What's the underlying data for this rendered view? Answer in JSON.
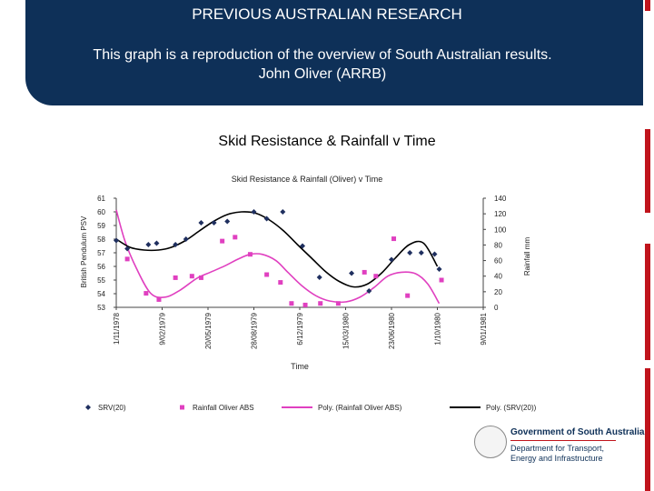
{
  "banner": {
    "title": "PREVIOUS AUSTRALIAN RESEARCH",
    "subtitle_line1": "This graph is a reproduction of the overview of South Australian results.",
    "subtitle_line2": "John Oliver (ARRB)"
  },
  "slide_title": "Skid Resistance & Rainfall v Time",
  "chart_data": {
    "type": "scatter",
    "title": "Skid Resistance & Rainfall (Oliver) v Time",
    "xlabel": "Time",
    "ylabel": "British Pendulum PSV",
    "y2label": "Rainfall mm",
    "x_ticks": [
      "1/11/1978",
      "9/02/1979",
      "20/05/1979",
      "28/08/1979",
      "6/12/1979",
      "15/03/1980",
      "23/06/1980",
      "1/10/1980",
      "9/01/1981"
    ],
    "y_ticks": [
      "61",
      "60",
      "59",
      "58",
      "57",
      "56",
      "55",
      "54",
      "53"
    ],
    "y2_ticks": [
      "140",
      "120",
      "100",
      "80",
      "60",
      "40",
      "20",
      "0"
    ],
    "ylim": [
      53,
      61
    ],
    "y2lim": [
      0,
      140
    ],
    "series": [
      {
        "name": "SRV(20)",
        "axis": "left",
        "marker": "diamond",
        "color": "#1f2f5f",
        "x": [
          "1978-11-01",
          "1978-11-25",
          "1979-01-10",
          "1979-01-28",
          "1979-03-10",
          "1979-04-02",
          "1979-05-05",
          "1979-06-02",
          "1979-07-01",
          "1979-08-28",
          "1979-09-25",
          "1979-10-30",
          "1979-12-12",
          "1980-01-18",
          "1980-03-28",
          "1980-05-05",
          "1980-06-23",
          "1980-08-02",
          "1980-08-27",
          "1980-09-25",
          "1980-10-05"
        ],
        "y": [
          57.9,
          57.3,
          57.6,
          57.7,
          57.6,
          58.0,
          59.2,
          59.2,
          59.3,
          60.0,
          59.5,
          60.0,
          57.5,
          55.2,
          55.5,
          54.2,
          56.5,
          57.0,
          57.0,
          56.9,
          55.8
        ]
      },
      {
        "name": "Rainfall Oliver ABS",
        "axis": "right",
        "marker": "square",
        "color": "#e040c0",
        "x": [
          "1978-11-25",
          "1979-01-05",
          "1979-02-02",
          "1979-03-10",
          "1979-04-15",
          "1979-05-05",
          "1979-06-20",
          "1979-07-18",
          "1979-08-20",
          "1979-09-25",
          "1979-10-25",
          "1979-11-18",
          "1979-12-18",
          "1980-01-20",
          "1980-02-28",
          "1980-04-25",
          "1980-05-20",
          "1980-06-28",
          "1980-07-28",
          "1980-10-10"
        ],
        "y": [
          62,
          18,
          10,
          38,
          40,
          38,
          85,
          90,
          68,
          42,
          32,
          5,
          3,
          5,
          5,
          45,
          40,
          88,
          15,
          35
        ]
      },
      {
        "name": "Poly. (Rainfall Oliver ABS)",
        "axis": "right",
        "type": "line",
        "color": "#e040c0",
        "x": [
          "1978-11-01",
          "1978-11-20",
          "1978-12-15",
          "1979-01-15",
          "1979-02-15",
          "1979-03-20",
          "1979-04-25",
          "1979-05-25",
          "1979-06-25",
          "1979-07-25",
          "1979-08-20",
          "1979-09-15",
          "1979-10-15",
          "1979-11-10",
          "1979-12-10",
          "1980-01-10",
          "1980-02-10",
          "1980-03-15",
          "1980-04-15",
          "1980-05-15",
          "1980-06-15",
          "1980-07-15",
          "1980-08-15",
          "1980-09-10",
          "1980-10-05"
        ],
        "y": [
          125,
          85,
          50,
          18,
          13,
          22,
          37,
          45,
          53,
          62,
          68,
          68,
          60,
          45,
          28,
          15,
          8,
          7,
          13,
          25,
          40,
          45,
          43,
          30,
          5
        ]
      },
      {
        "name": "Poly. (SRV(20))",
        "axis": "left",
        "type": "line",
        "color": "#000000",
        "x": [
          "1978-11-01",
          "1978-12-01",
          "1979-01-01",
          "1979-02-01",
          "1979-03-01",
          "1979-04-01",
          "1979-05-01",
          "1979-06-01",
          "1979-07-01",
          "1979-08-01",
          "1979-09-01",
          "1979-10-01",
          "1979-11-01",
          "1979-12-01",
          "1980-01-01",
          "1980-02-01",
          "1980-03-01",
          "1980-04-01",
          "1980-05-01",
          "1980-06-01",
          "1980-07-01",
          "1980-08-01",
          "1980-09-01",
          "1980-10-01"
        ],
        "y": [
          58.0,
          57.4,
          57.2,
          57.2,
          57.4,
          57.9,
          58.6,
          59.3,
          59.8,
          60.0,
          59.9,
          59.4,
          58.6,
          57.6,
          56.6,
          55.6,
          54.9,
          54.5,
          54.7,
          55.5,
          56.6,
          57.6,
          57.7,
          56.0
        ]
      }
    ],
    "legend": [
      "SRV(20)",
      "Rainfall Oliver ABS",
      "Poly. (Rainfall Oliver ABS)",
      "Poly. (SRV(20))"
    ],
    "legend_position": "bottom",
    "grid": false
  },
  "logo": {
    "name": "Government of South Australia",
    "dept": "Department for Transport, Energy and Infrastructure"
  }
}
